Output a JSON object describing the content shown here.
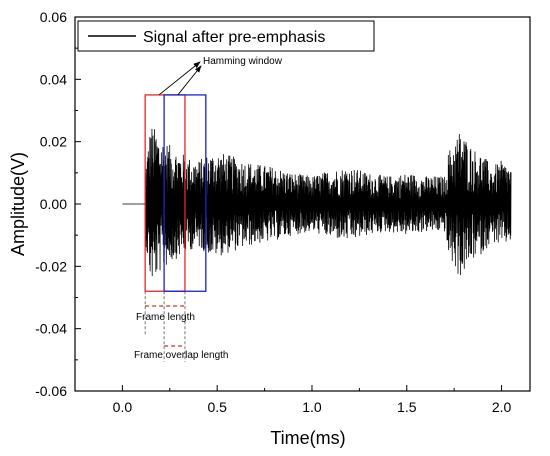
{
  "chart_data": {
    "type": "line",
    "xlabel": "Time(ms)",
    "ylabel": "Amplitude(V)",
    "xlim": [
      -0.25,
      2.15
    ],
    "ylim": [
      -0.06,
      0.06
    ],
    "x_ticks": [
      0.0,
      0.5,
      1.0,
      1.5,
      2.0
    ],
    "x_tick_labels": [
      "0.0",
      "0.5",
      "1.0",
      "1.5",
      "2.0"
    ],
    "y_ticks": [
      -0.06,
      -0.04,
      -0.02,
      0.0,
      0.02,
      0.04,
      0.06
    ],
    "y_tick_labels": [
      "-0.06",
      "-0.04",
      "-0.02",
      "0.00",
      "0.02",
      "0.04",
      "0.06"
    ],
    "grid": false,
    "legend_position": "top-left",
    "series": [
      {
        "name": "Signal after pre-emphasis",
        "color": "#000000",
        "x_start": 0.0,
        "x_end": 2.05,
        "x_signal_start": 0.12,
        "envelope": [
          [
            0.0,
            0.0
          ],
          [
            0.115,
            0.0
          ],
          [
            0.12,
            0.012
          ],
          [
            0.15,
            0.026
          ],
          [
            0.2,
            0.022
          ],
          [
            0.25,
            0.019
          ],
          [
            0.3,
            0.017
          ],
          [
            0.35,
            0.015
          ],
          [
            0.4,
            0.014
          ],
          [
            0.45,
            0.016
          ],
          [
            0.5,
            0.017
          ],
          [
            0.55,
            0.016
          ],
          [
            0.6,
            0.015
          ],
          [
            0.7,
            0.013
          ],
          [
            0.8,
            0.012
          ],
          [
            0.9,
            0.01
          ],
          [
            1.0,
            0.009
          ],
          [
            1.1,
            0.011
          ],
          [
            1.2,
            0.012
          ],
          [
            1.3,
            0.01
          ],
          [
            1.4,
            0.009
          ],
          [
            1.5,
            0.01
          ],
          [
            1.6,
            0.009
          ],
          [
            1.7,
            0.009
          ],
          [
            1.72,
            0.017
          ],
          [
            1.78,
            0.024
          ],
          [
            1.85,
            0.018
          ],
          [
            1.9,
            0.016
          ],
          [
            1.95,
            0.012
          ],
          [
            2.0,
            0.014
          ],
          [
            2.05,
            0.012
          ]
        ]
      }
    ],
    "annotations": {
      "hamming_window_label": "Hamming window",
      "frame_length_label": "Frame length",
      "frame_overlap_label": "Frame overlap length",
      "frame1": {
        "x_start": 0.12,
        "x_end": 0.33,
        "y_top": 0.035,
        "y_bottom": -0.028,
        "color": "#e8262a"
      },
      "frame2": {
        "x_start": 0.22,
        "x_end": 0.44,
        "y_top": 0.035,
        "y_bottom": -0.028,
        "color": "#1a22d6"
      }
    }
  }
}
